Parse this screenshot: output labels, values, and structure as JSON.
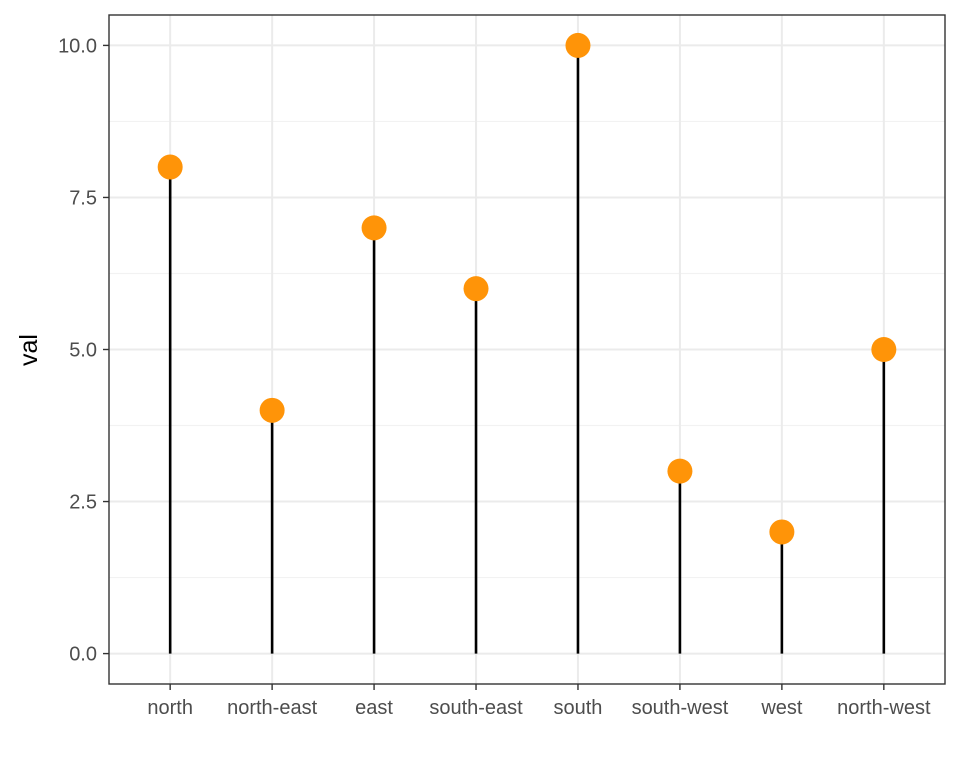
{
  "chart_data": {
    "type": "lollipop",
    "categories": [
      "north",
      "north-east",
      "east",
      "south-east",
      "south",
      "south-west",
      "west",
      "north-west"
    ],
    "values": [
      8,
      4,
      7,
      6,
      10,
      3,
      2,
      5
    ],
    "title": "",
    "xlabel": "",
    "ylabel": "val",
    "ylim": [
      -0.5,
      10.5
    ],
    "yticks": [
      0,
      2.5,
      5,
      7.5,
      10
    ],
    "ytick_labels": [
      "0.0",
      "2.5",
      "5.0",
      "7.5",
      "10.0"
    ],
    "grid": true,
    "theme": "bw"
  },
  "colors": {
    "point": "#ff9408",
    "stem": "#000000",
    "grid_major": "#ebebeb",
    "grid_minor": "#f2f2f2",
    "panel_border": "#333333",
    "tick_text": "#4d4d4d"
  }
}
